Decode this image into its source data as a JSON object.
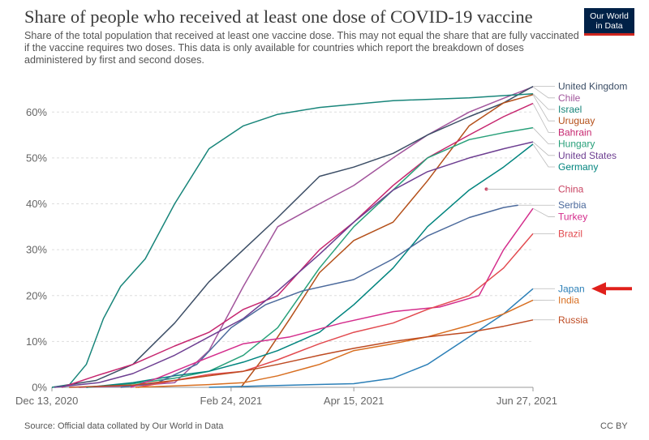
{
  "header": {
    "title": "Share of people who received at least one dose of COVID-19 vaccine",
    "subtitle": "Share of the total population that received at least one vaccine dose. This may not equal the share that are fully vaccinated if the vaccine requires two doses. This data is only available for countries which report the breakdown of doses administered by first and second doses.",
    "logo_line1": "Our World",
    "logo_line2": "in Data"
  },
  "footer": {
    "source": "Source: Official data collated by Our World in Data",
    "license": "CC BY"
  },
  "colors": {
    "annotation_arrow": "#e0201b",
    "grid": "#dddddd",
    "axis": "#999999"
  },
  "chart_data": {
    "type": "line",
    "x_axis": {
      "start": "2020-12-13",
      "end": "2021-06-27",
      "ticks": [
        "2020-12-13",
        "2021-02-24",
        "2021-04-15",
        "2021-06-27"
      ],
      "tick_labels": [
        "Dec 13, 2020",
        "Feb 24, 2021",
        "Apr 15, 2021",
        "Jun 27, 2021"
      ]
    },
    "y_axis": {
      "unit": "%",
      "ylim": [
        0,
        65
      ],
      "ticks": [
        0,
        10,
        20,
        30,
        40,
        50,
        60
      ],
      "tick_labels": [
        "0%",
        "10%",
        "20%",
        "30%",
        "40%",
        "50%",
        "60%"
      ]
    },
    "grid": "horizontal-dashed",
    "legend": "right, labels at line ends",
    "annotation": {
      "type": "arrow",
      "points_to": "Japan"
    },
    "series": [
      {
        "name": "Chile",
        "color": "#a2559c",
        "points": [
          [
            "2020-12-24",
            0
          ],
          [
            "2021-01-15",
            0.3
          ],
          [
            "2021-02-01",
            1
          ],
          [
            "2021-02-15",
            8
          ],
          [
            "2021-03-01",
            22
          ],
          [
            "2021-03-15",
            35
          ],
          [
            "2021-04-01",
            40
          ],
          [
            "2021-04-15",
            44
          ],
          [
            "2021-05-01",
            50
          ],
          [
            "2021-05-15",
            55
          ],
          [
            "2021-06-01",
            60
          ],
          [
            "2021-06-15",
            63
          ],
          [
            "2021-06-27",
            65.5
          ]
        ]
      },
      {
        "name": "United Kingdom",
        "color": "#3c4e66",
        "points": [
          [
            "2020-12-13",
            0
          ],
          [
            "2020-12-31",
            1.5
          ],
          [
            "2021-01-15",
            5
          ],
          [
            "2021-02-01",
            14
          ],
          [
            "2021-02-15",
            23
          ],
          [
            "2021-03-01",
            30
          ],
          [
            "2021-03-15",
            37
          ],
          [
            "2021-04-01",
            46
          ],
          [
            "2021-04-15",
            48
          ],
          [
            "2021-05-01",
            51
          ],
          [
            "2021-05-15",
            55
          ],
          [
            "2021-06-01",
            59
          ],
          [
            "2021-06-15",
            62
          ],
          [
            "2021-06-27",
            65.6
          ]
        ]
      },
      {
        "name": "Israel",
        "color": "#18857a",
        "points": [
          [
            "2020-12-13",
            0
          ],
          [
            "2020-12-20",
            0.5
          ],
          [
            "2020-12-27",
            5
          ],
          [
            "2021-01-03",
            15
          ],
          [
            "2021-01-10",
            22
          ],
          [
            "2021-01-20",
            28
          ],
          [
            "2021-02-01",
            40
          ],
          [
            "2021-02-15",
            52
          ],
          [
            "2021-03-01",
            57
          ],
          [
            "2021-03-15",
            59.5
          ],
          [
            "2021-04-01",
            61
          ],
          [
            "2021-05-01",
            62.5
          ],
          [
            "2021-06-01",
            63.1
          ],
          [
            "2021-06-27",
            64
          ]
        ]
      },
      {
        "name": "Uruguay",
        "color": "#b4501a",
        "points": [
          [
            "2021-02-28",
            0
          ],
          [
            "2021-03-10",
            7
          ],
          [
            "2021-03-20",
            15
          ],
          [
            "2021-04-01",
            25
          ],
          [
            "2021-04-15",
            32
          ],
          [
            "2021-05-01",
            36
          ],
          [
            "2021-05-15",
            45
          ],
          [
            "2021-06-01",
            57
          ],
          [
            "2021-06-15",
            62
          ],
          [
            "2021-06-27",
            63.8
          ]
        ]
      },
      {
        "name": "Bahrain",
        "color": "#c6266f",
        "points": [
          [
            "2020-12-17",
            0
          ],
          [
            "2020-12-31",
            2.5
          ],
          [
            "2021-01-15",
            5
          ],
          [
            "2021-02-01",
            9
          ],
          [
            "2021-02-15",
            12
          ],
          [
            "2021-03-01",
            17
          ],
          [
            "2021-03-15",
            20
          ],
          [
            "2021-04-01",
            30
          ],
          [
            "2021-04-15",
            36
          ],
          [
            "2021-05-01",
            44
          ],
          [
            "2021-05-15",
            50
          ],
          [
            "2021-06-01",
            55
          ],
          [
            "2021-06-15",
            59
          ],
          [
            "2021-06-27",
            61.9
          ]
        ]
      },
      {
        "name": "Hungary",
        "color": "#28a07a",
        "points": [
          [
            "2020-12-27",
            0
          ],
          [
            "2021-01-15",
            0.8
          ],
          [
            "2021-02-01",
            2
          ],
          [
            "2021-02-15",
            3.5
          ],
          [
            "2021-03-01",
            7
          ],
          [
            "2021-03-15",
            13
          ],
          [
            "2021-04-01",
            26
          ],
          [
            "2021-04-15",
            35
          ],
          [
            "2021-05-01",
            43
          ],
          [
            "2021-05-15",
            50
          ],
          [
            "2021-06-01",
            54
          ],
          [
            "2021-06-15",
            55.5
          ],
          [
            "2021-06-27",
            56.6
          ]
        ]
      },
      {
        "name": "United States",
        "color": "#6d3e91",
        "points": [
          [
            "2020-12-14",
            0
          ],
          [
            "2021-01-01",
            1
          ],
          [
            "2021-01-15",
            3
          ],
          [
            "2021-02-01",
            7
          ],
          [
            "2021-02-15",
            11
          ],
          [
            "2021-03-01",
            15
          ],
          [
            "2021-03-15",
            21
          ],
          [
            "2021-04-01",
            29
          ],
          [
            "2021-04-15",
            36
          ],
          [
            "2021-05-01",
            43
          ],
          [
            "2021-05-15",
            47
          ],
          [
            "2021-06-01",
            50
          ],
          [
            "2021-06-15",
            52
          ],
          [
            "2021-06-27",
            53.5
          ]
        ]
      },
      {
        "name": "Germany",
        "color": "#00847e",
        "points": [
          [
            "2020-12-27",
            0
          ],
          [
            "2021-01-15",
            1
          ],
          [
            "2021-02-01",
            2.5
          ],
          [
            "2021-02-15",
            3.5
          ],
          [
            "2021-03-01",
            5.5
          ],
          [
            "2021-03-15",
            8
          ],
          [
            "2021-04-01",
            12
          ],
          [
            "2021-04-15",
            18
          ],
          [
            "2021-05-01",
            26
          ],
          [
            "2021-05-15",
            35
          ],
          [
            "2021-06-01",
            43
          ],
          [
            "2021-06-15",
            48
          ],
          [
            "2021-06-27",
            53
          ]
        ]
      },
      {
        "name": "China",
        "color": "#c94664",
        "points": [
          [
            "2021-06-08",
            43.2
          ]
        ]
      },
      {
        "name": "Serbia",
        "color": "#4c6a9c",
        "points": [
          [
            "2021-01-10",
            0
          ],
          [
            "2021-01-25",
            1
          ],
          [
            "2021-02-10",
            5
          ],
          [
            "2021-02-24",
            13
          ],
          [
            "2021-03-10",
            18
          ],
          [
            "2021-03-25",
            21
          ],
          [
            "2021-04-15",
            23.5
          ],
          [
            "2021-05-01",
            28
          ],
          [
            "2021-05-15",
            33
          ],
          [
            "2021-06-01",
            37
          ],
          [
            "2021-06-15",
            39.2
          ],
          [
            "2021-06-21",
            39.7
          ]
        ]
      },
      {
        "name": "Turkey",
        "color": "#d42d8c",
        "points": [
          [
            "2021-01-14",
            0
          ],
          [
            "2021-01-25",
            2
          ],
          [
            "2021-02-10",
            5.5
          ],
          [
            "2021-03-01",
            9.5
          ],
          [
            "2021-03-20",
            11
          ],
          [
            "2021-04-10",
            14
          ],
          [
            "2021-05-01",
            16.5
          ],
          [
            "2021-05-20",
            17.5
          ],
          [
            "2021-06-05",
            20
          ],
          [
            "2021-06-15",
            30
          ],
          [
            "2021-06-27",
            39
          ]
        ]
      },
      {
        "name": "Brazil",
        "color": "#e24a4f",
        "points": [
          [
            "2021-01-17",
            0
          ],
          [
            "2021-02-01",
            1.5
          ],
          [
            "2021-02-15",
            2.8
          ],
          [
            "2021-03-01",
            3.5
          ],
          [
            "2021-03-15",
            6
          ],
          [
            "2021-04-01",
            9.5
          ],
          [
            "2021-04-15",
            12
          ],
          [
            "2021-05-01",
            14
          ],
          [
            "2021-05-15",
            17
          ],
          [
            "2021-06-01",
            20
          ],
          [
            "2021-06-15",
            26
          ],
          [
            "2021-06-27",
            33.5
          ]
        ]
      },
      {
        "name": "Japan",
        "color": "#2b7fb7",
        "points": [
          [
            "2021-02-15",
            0
          ],
          [
            "2021-03-15",
            0.4
          ],
          [
            "2021-04-15",
            0.8
          ],
          [
            "2021-05-01",
            2
          ],
          [
            "2021-05-15",
            5
          ],
          [
            "2021-06-01",
            11
          ],
          [
            "2021-06-15",
            16
          ],
          [
            "2021-06-27",
            21.5
          ]
        ]
      },
      {
        "name": "India",
        "color": "#d86f21",
        "points": [
          [
            "2021-01-16",
            0
          ],
          [
            "2021-02-01",
            0.3
          ],
          [
            "2021-02-15",
            0.6
          ],
          [
            "2021-03-01",
            1
          ],
          [
            "2021-03-15",
            2.5
          ],
          [
            "2021-04-01",
            5
          ],
          [
            "2021-04-15",
            8
          ],
          [
            "2021-05-01",
            9.5
          ],
          [
            "2021-05-15",
            11
          ],
          [
            "2021-06-01",
            13.5
          ],
          [
            "2021-06-15",
            16
          ],
          [
            "2021-06-27",
            19
          ]
        ]
      },
      {
        "name": "Russia",
        "color": "#be4b22",
        "points": [
          [
            "2020-12-20",
            0
          ],
          [
            "2021-01-15",
            0.5
          ],
          [
            "2021-02-01",
            1.5
          ],
          [
            "2021-02-15",
            2.5
          ],
          [
            "2021-03-01",
            3.5
          ],
          [
            "2021-03-15",
            5
          ],
          [
            "2021-04-01",
            7
          ],
          [
            "2021-04-15",
            8.5
          ],
          [
            "2021-05-01",
            10
          ],
          [
            "2021-05-15",
            11
          ],
          [
            "2021-06-01",
            12
          ],
          [
            "2021-06-15",
            13.3
          ],
          [
            "2021-06-27",
            14.7
          ]
        ]
      }
    ]
  }
}
